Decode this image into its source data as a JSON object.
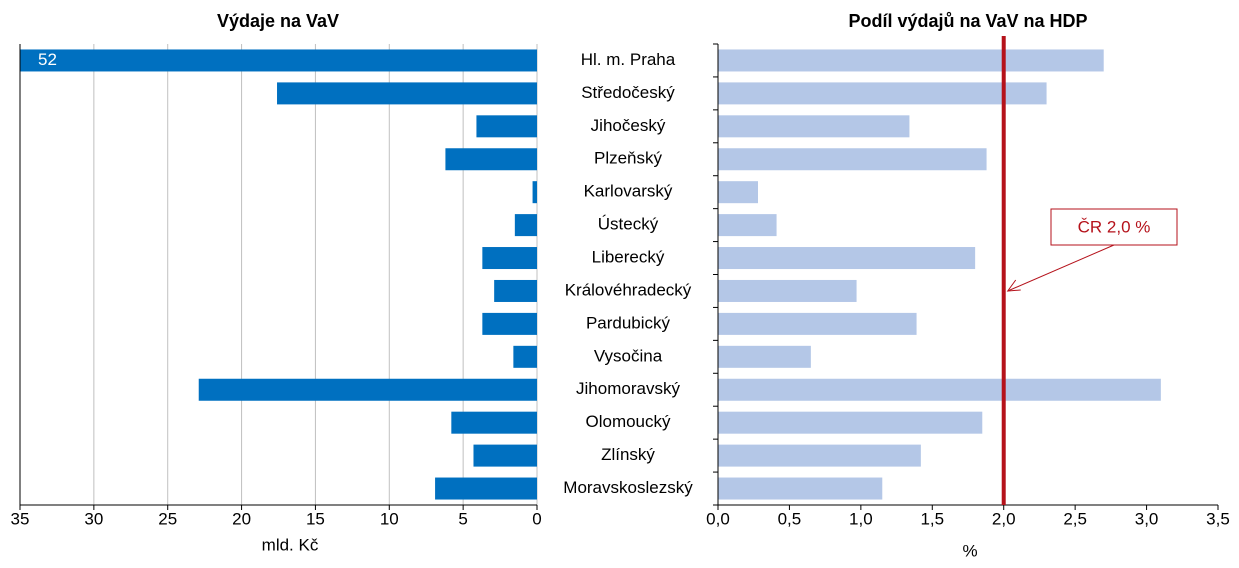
{
  "chart_data": [
    {
      "type": "bar",
      "orientation": "horizontal",
      "title": "Výdaje na VaV",
      "xlabel": "mld. Kč",
      "categories": [
        "Hl. m. Praha",
        "Středočeský",
        "Jihočeský",
        "Plzeňský",
        "Karlovarský",
        "Ústecký",
        "Liberecký",
        "Královéhradecký",
        "Pardubický",
        "Vysočina",
        "Jihomoravský",
        "Olomoucký",
        "Zlínský",
        "Moravskoslezský"
      ],
      "values": [
        52,
        17.6,
        4.1,
        6.2,
        0.3,
        1.5,
        3.7,
        2.9,
        3.7,
        1.6,
        22.9,
        5.8,
        4.3,
        6.9
      ],
      "value_labels": [
        "52",
        null,
        null,
        null,
        null,
        null,
        null,
        null,
        null,
        null,
        null,
        null,
        null,
        null
      ],
      "color": "#0070c0",
      "xlim": [
        35,
        0
      ],
      "xticks": [
        35,
        30,
        25,
        20,
        15,
        10,
        5,
        0
      ],
      "grid": true
    },
    {
      "type": "bar",
      "orientation": "horizontal",
      "title": "Podíl výdajů na VaV na HDP",
      "xlabel": "%",
      "values": [
        2.7,
        2.3,
        1.34,
        1.88,
        0.28,
        0.41,
        1.8,
        0.97,
        1.39,
        0.65,
        3.1,
        1.85,
        1.42,
        1.15
      ],
      "color": "#b4c7e7",
      "xlim": [
        0,
        3.5
      ],
      "xticks": [
        {
          "value": 0,
          "label": "0,0"
        },
        {
          "value": 0.5,
          "label": "0,5"
        },
        {
          "value": 1,
          "label": "1,0"
        },
        {
          "value": 1.5,
          "label": "1,5"
        },
        {
          "value": 2,
          "label": "2,0"
        },
        {
          "value": 2.5,
          "label": "2,5"
        },
        {
          "value": 3,
          "label": "3,0"
        },
        {
          "value": 3.5,
          "label": "3,5"
        }
      ],
      "grid": false,
      "reference_line": {
        "value": 2,
        "color": "#b5121b",
        "label": "ČR 2,0 %"
      }
    }
  ]
}
